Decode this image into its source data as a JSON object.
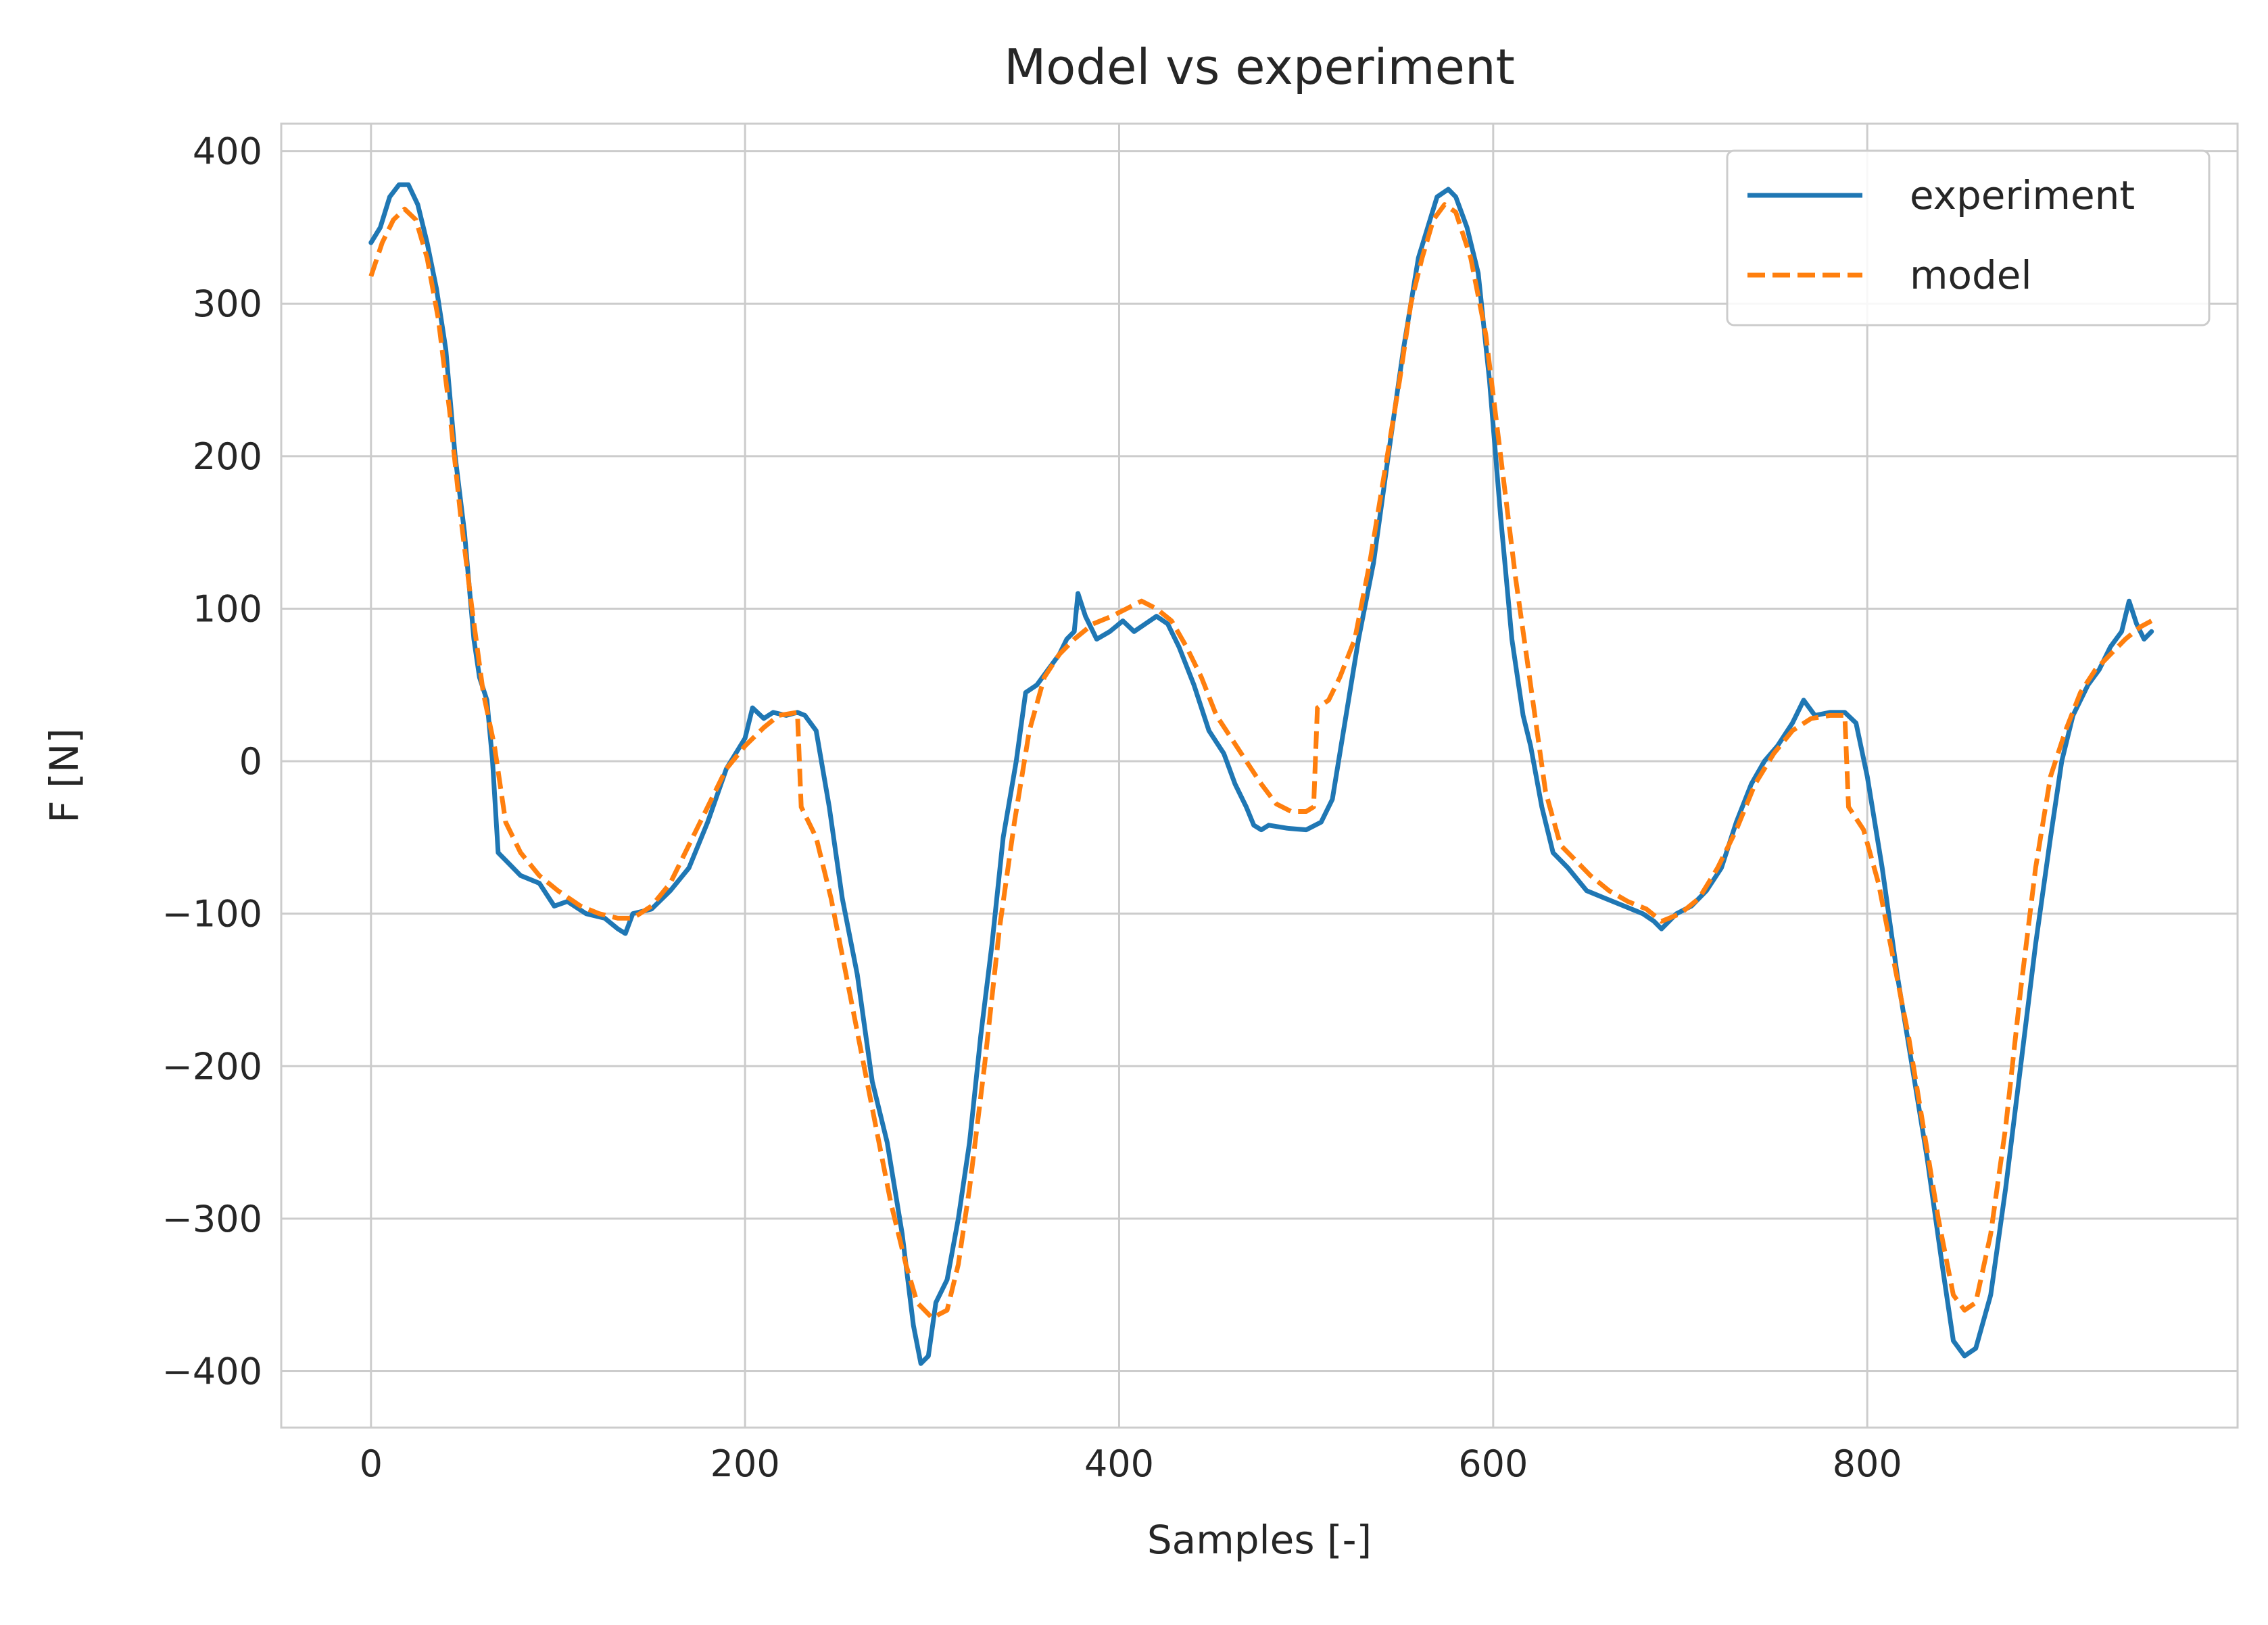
{
  "chart_data": {
    "type": "line",
    "title": "Model vs experiment",
    "xlabel": "Samples [-]",
    "ylabel": "F [N]",
    "xlim": [
      -48,
      998
    ],
    "ylim": [
      -437,
      418
    ],
    "x_ticks": [
      0,
      200,
      400,
      600,
      800
    ],
    "x_tick_labels": [
      "0",
      "200",
      "400",
      "600",
      "800"
    ],
    "y_ticks": [
      400,
      300,
      200,
      100,
      0,
      -100,
      -200,
      -300,
      -400
    ],
    "y_tick_labels": [
      "400",
      "300",
      "200",
      "100",
      "0",
      "−100",
      "−200",
      "−300",
      "−400"
    ],
    "grid": true,
    "legend_position": "top-right",
    "series": [
      {
        "name": "experiment",
        "color": "#1f77b4",
        "style": "solid",
        "points": [
          [
            0,
            340
          ],
          [
            5,
            350
          ],
          [
            10,
            370
          ],
          [
            15,
            378
          ],
          [
            20,
            378
          ],
          [
            25,
            365
          ],
          [
            30,
            340
          ],
          [
            35,
            310
          ],
          [
            40,
            270
          ],
          [
            45,
            200
          ],
          [
            50,
            150
          ],
          [
            55,
            80
          ],
          [
            58,
            55
          ],
          [
            62,
            40
          ],
          [
            65,
            0
          ],
          [
            68,
            -60
          ],
          [
            72,
            -65
          ],
          [
            80,
            -75
          ],
          [
            90,
            -80
          ],
          [
            98,
            -95
          ],
          [
            105,
            -92
          ],
          [
            115,
            -100
          ],
          [
            125,
            -103
          ],
          [
            132,
            -110
          ],
          [
            136,
            -113
          ],
          [
            140,
            -100
          ],
          [
            150,
            -97
          ],
          [
            160,
            -85
          ],
          [
            170,
            -70
          ],
          [
            180,
            -40
          ],
          [
            190,
            -5
          ],
          [
            200,
            15
          ],
          [
            204,
            35
          ],
          [
            210,
            28
          ],
          [
            215,
            32
          ],
          [
            222,
            30
          ],
          [
            228,
            32
          ],
          [
            232,
            30
          ],
          [
            238,
            20
          ],
          [
            245,
            -30
          ],
          [
            252,
            -90
          ],
          [
            260,
            -140
          ],
          [
            268,
            -210
          ],
          [
            276,
            -250
          ],
          [
            284,
            -310
          ],
          [
            290,
            -370
          ],
          [
            294,
            -395
          ],
          [
            298,
            -390
          ],
          [
            302,
            -355
          ],
          [
            308,
            -340
          ],
          [
            314,
            -300
          ],
          [
            320,
            -250
          ],
          [
            326,
            -180
          ],
          [
            332,
            -120
          ],
          [
            338,
            -50
          ],
          [
            345,
            0
          ],
          [
            350,
            45
          ],
          [
            356,
            50
          ],
          [
            362,
            60
          ],
          [
            368,
            70
          ],
          [
            372,
            80
          ],
          [
            376,
            85
          ],
          [
            378,
            110
          ],
          [
            382,
            95
          ],
          [
            388,
            80
          ],
          [
            395,
            85
          ],
          [
            402,
            92
          ],
          [
            408,
            85
          ],
          [
            414,
            90
          ],
          [
            420,
            95
          ],
          [
            426,
            90
          ],
          [
            432,
            75
          ],
          [
            440,
            50
          ],
          [
            448,
            20
          ],
          [
            456,
            5
          ],
          [
            462,
            -15
          ],
          [
            468,
            -30
          ],
          [
            472,
            -42
          ],
          [
            476,
            -45
          ],
          [
            480,
            -42
          ],
          [
            490,
            -44
          ],
          [
            500,
            -45
          ],
          [
            508,
            -40
          ],
          [
            514,
            -25
          ],
          [
            520,
            20
          ],
          [
            528,
            80
          ],
          [
            536,
            130
          ],
          [
            545,
            210
          ],
          [
            552,
            270
          ],
          [
            560,
            330
          ],
          [
            565,
            350
          ],
          [
            570,
            370
          ],
          [
            576,
            375
          ],
          [
            580,
            370
          ],
          [
            586,
            350
          ],
          [
            592,
            320
          ],
          [
            598,
            250
          ],
          [
            604,
            160
          ],
          [
            610,
            80
          ],
          [
            616,
            30
          ],
          [
            620,
            10
          ],
          [
            626,
            -30
          ],
          [
            632,
            -60
          ],
          [
            640,
            -70
          ],
          [
            650,
            -85
          ],
          [
            660,
            -90
          ],
          [
            670,
            -95
          ],
          [
            680,
            -100
          ],
          [
            686,
            -105
          ],
          [
            690,
            -110
          ],
          [
            698,
            -100
          ],
          [
            706,
            -95
          ],
          [
            714,
            -85
          ],
          [
            722,
            -70
          ],
          [
            730,
            -40
          ],
          [
            738,
            -15
          ],
          [
            745,
            0
          ],
          [
            752,
            10
          ],
          [
            760,
            25
          ],
          [
            766,
            40
          ],
          [
            772,
            30
          ],
          [
            780,
            32
          ],
          [
            788,
            32
          ],
          [
            794,
            25
          ],
          [
            800,
            -10
          ],
          [
            808,
            -70
          ],
          [
            816,
            -140
          ],
          [
            824,
            -200
          ],
          [
            832,
            -260
          ],
          [
            840,
            -330
          ],
          [
            846,
            -380
          ],
          [
            852,
            -390
          ],
          [
            858,
            -385
          ],
          [
            866,
            -350
          ],
          [
            874,
            -280
          ],
          [
            882,
            -200
          ],
          [
            890,
            -120
          ],
          [
            898,
            -50
          ],
          [
            904,
            0
          ],
          [
            910,
            30
          ],
          [
            918,
            50
          ],
          [
            924,
            60
          ],
          [
            930,
            75
          ],
          [
            936,
            85
          ],
          [
            940,
            105
          ],
          [
            944,
            90
          ],
          [
            948,
            80
          ],
          [
            952,
            85
          ]
        ]
      },
      {
        "name": "model",
        "color": "#ff7f0e",
        "style": "dashed",
        "points": [
          [
            0,
            318
          ],
          [
            6,
            340
          ],
          [
            12,
            355
          ],
          [
            18,
            362
          ],
          [
            24,
            355
          ],
          [
            30,
            330
          ],
          [
            36,
            290
          ],
          [
            42,
            230
          ],
          [
            48,
            160
          ],
          [
            54,
            100
          ],
          [
            60,
            45
          ],
          [
            66,
            10
          ],
          [
            72,
            -40
          ],
          [
            80,
            -60
          ],
          [
            90,
            -75
          ],
          [
            100,
            -85
          ],
          [
            112,
            -95
          ],
          [
            122,
            -100
          ],
          [
            132,
            -103
          ],
          [
            140,
            -103
          ],
          [
            150,
            -95
          ],
          [
            160,
            -80
          ],
          [
            170,
            -55
          ],
          [
            180,
            -30
          ],
          [
            190,
            -5
          ],
          [
            200,
            10
          ],
          [
            210,
            22
          ],
          [
            218,
            30
          ],
          [
            228,
            32
          ],
          [
            230,
            -30
          ],
          [
            238,
            -50
          ],
          [
            246,
            -90
          ],
          [
            254,
            -140
          ],
          [
            262,
            -190
          ],
          [
            270,
            -240
          ],
          [
            278,
            -290
          ],
          [
            286,
            -330
          ],
          [
            292,
            -355
          ],
          [
            300,
            -365
          ],
          [
            308,
            -360
          ],
          [
            314,
            -330
          ],
          [
            320,
            -280
          ],
          [
            328,
            -200
          ],
          [
            336,
            -110
          ],
          [
            344,
            -40
          ],
          [
            352,
            20
          ],
          [
            360,
            55
          ],
          [
            368,
            70
          ],
          [
            376,
            80
          ],
          [
            386,
            90
          ],
          [
            396,
            95
          ],
          [
            404,
            100
          ],
          [
            412,
            105
          ],
          [
            420,
            100
          ],
          [
            428,
            92
          ],
          [
            436,
            75
          ],
          [
            444,
            55
          ],
          [
            452,
            30
          ],
          [
            460,
            15
          ],
          [
            468,
            0
          ],
          [
            476,
            -15
          ],
          [
            484,
            -28
          ],
          [
            492,
            -33
          ],
          [
            500,
            -33
          ],
          [
            504,
            -30
          ],
          [
            506,
            35
          ],
          [
            512,
            40
          ],
          [
            518,
            55
          ],
          [
            526,
            80
          ],
          [
            534,
            130
          ],
          [
            542,
            190
          ],
          [
            550,
            250
          ],
          [
            556,
            300
          ],
          [
            562,
            330
          ],
          [
            568,
            355
          ],
          [
            574,
            365
          ],
          [
            580,
            360
          ],
          [
            588,
            330
          ],
          [
            596,
            280
          ],
          [
            604,
            200
          ],
          [
            612,
            120
          ],
          [
            620,
            50
          ],
          [
            628,
            -20
          ],
          [
            636,
            -55
          ],
          [
            644,
            -65
          ],
          [
            652,
            -75
          ],
          [
            662,
            -85
          ],
          [
            672,
            -92
          ],
          [
            682,
            -97
          ],
          [
            690,
            -105
          ],
          [
            700,
            -100
          ],
          [
            710,
            -90
          ],
          [
            720,
            -70
          ],
          [
            730,
            -45
          ],
          [
            740,
            -15
          ],
          [
            750,
            5
          ],
          [
            760,
            20
          ],
          [
            770,
            28
          ],
          [
            780,
            30
          ],
          [
            788,
            30
          ],
          [
            790,
            -30
          ],
          [
            798,
            -45
          ],
          [
            806,
            -80
          ],
          [
            814,
            -130
          ],
          [
            822,
            -180
          ],
          [
            830,
            -240
          ],
          [
            838,
            -300
          ],
          [
            846,
            -350
          ],
          [
            852,
            -360
          ],
          [
            858,
            -355
          ],
          [
            866,
            -310
          ],
          [
            874,
            -240
          ],
          [
            882,
            -150
          ],
          [
            890,
            -70
          ],
          [
            898,
            -10
          ],
          [
            906,
            20
          ],
          [
            914,
            45
          ],
          [
            922,
            60
          ],
          [
            930,
            70
          ],
          [
            938,
            80
          ],
          [
            946,
            88
          ],
          [
            952,
            92
          ]
        ]
      }
    ]
  }
}
